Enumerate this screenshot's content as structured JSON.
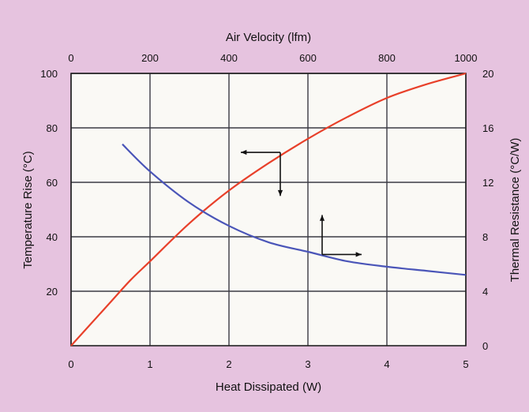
{
  "chart_data": {
    "type": "line",
    "top_axis": {
      "label": "Air Velocity (lfm)",
      "ticks": [
        "0",
        "200",
        "400",
        "600",
        "800",
        "1000"
      ],
      "range": [
        0,
        1000
      ]
    },
    "bottom_axis": {
      "label": "Heat Dissipated (W)",
      "ticks": [
        "0",
        "1",
        "2",
        "3",
        "4",
        "5"
      ],
      "range": [
        0,
        5
      ]
    },
    "left_axis": {
      "label": "Temperature Rise (°C)",
      "ticks": [
        "20",
        "40",
        "60",
        "80",
        "100"
      ],
      "range": [
        0,
        100
      ]
    },
    "right_axis": {
      "label": "Thermal Resistance (°C/W)",
      "ticks": [
        "0",
        "4",
        "8",
        "12",
        "16",
        "20"
      ],
      "range": [
        0,
        20
      ]
    },
    "grid": true,
    "series": [
      {
        "axes": "bottom-left",
        "color": "#e8402a",
        "x": [
          0,
          0.25,
          0.5,
          0.75,
          1,
          1.5,
          2,
          2.5,
          3,
          3.5,
          4,
          4.5,
          5
        ],
        "y": [
          0,
          8,
          16,
          24,
          31,
          45,
          57,
          67,
          76,
          84,
          91,
          96,
          100
        ]
      },
      {
        "axes": "top-right",
        "color": "#4a55b8",
        "x": [
          130,
          200,
          300,
          400,
          500,
          600,
          700,
          800,
          900,
          1000
        ],
        "y": [
          14.8,
          12.8,
          10.5,
          8.8,
          7.6,
          6.9,
          6.2,
          5.8,
          5.5,
          5.2
        ]
      }
    ],
    "annotations": [
      {
        "type": "arrow-pair",
        "meaning": "left and down",
        "refers_to": "red curve"
      },
      {
        "type": "arrow-pair",
        "meaning": "up and right",
        "refers_to": "blue curve"
      }
    ]
  },
  "colors": {
    "background": "#e6c3df",
    "plot_area": "#faf9f5",
    "grid": "#3a3a44"
  }
}
